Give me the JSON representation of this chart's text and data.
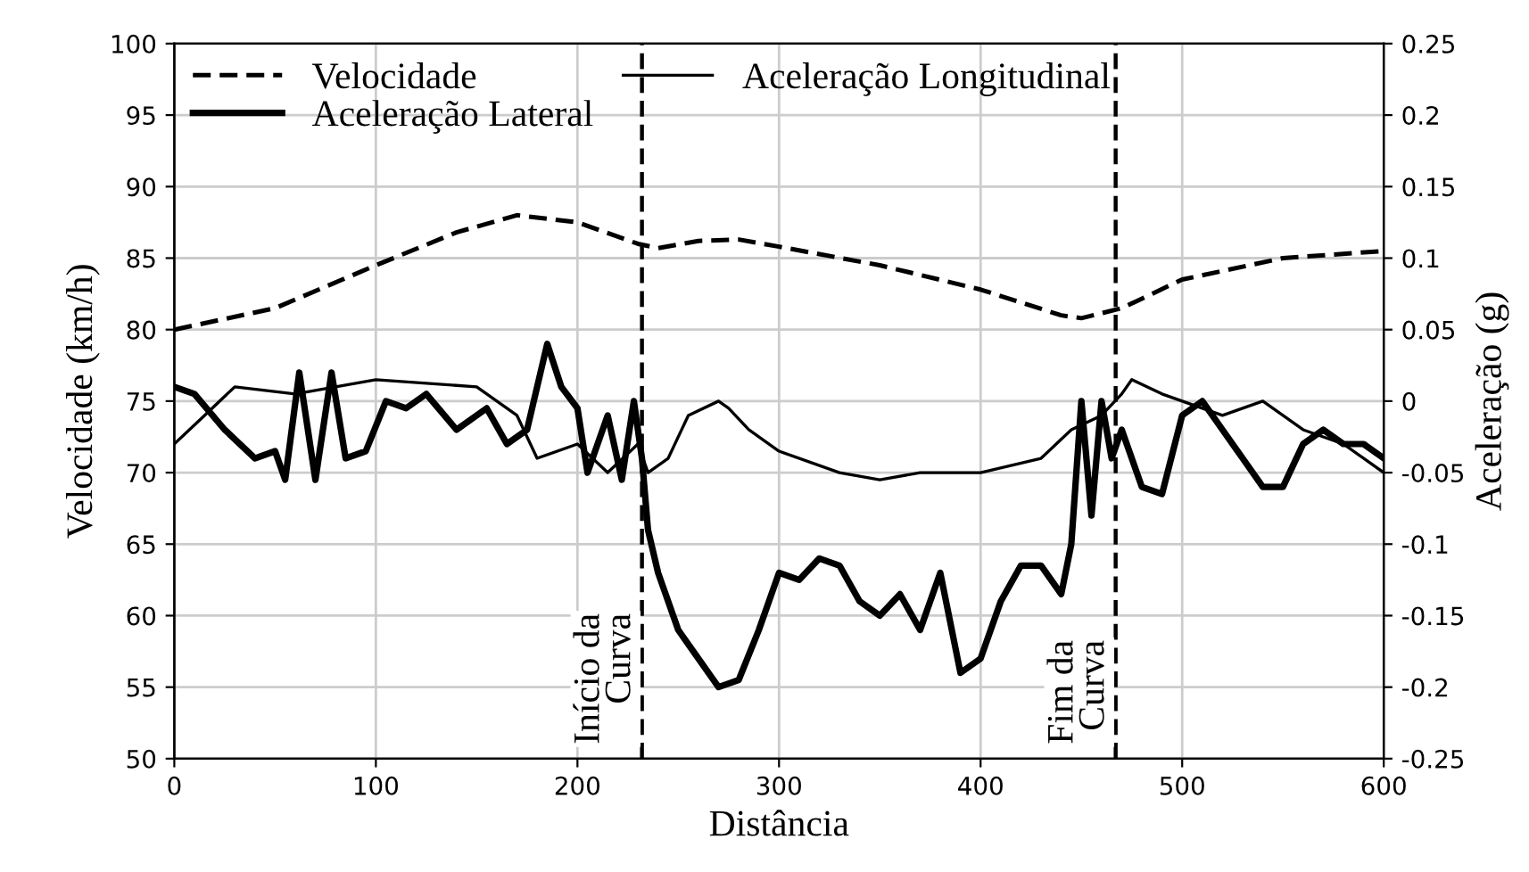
{
  "chart_data": {
    "type": "line",
    "xlabel": "Distância",
    "ylabel": "Velocidade (km/h)",
    "y2label": "Aceleração (g)",
    "xlim": [
      0,
      600
    ],
    "xticks": [
      0,
      100,
      200,
      300,
      400,
      500,
      600
    ],
    "ylim": [
      50,
      100
    ],
    "yticks": [
      50,
      55,
      60,
      65,
      70,
      75,
      80,
      85,
      90,
      95,
      100
    ],
    "y2lim": [
      -0.25,
      0.25
    ],
    "y2ticks": [
      -0.25,
      -0.2,
      -0.15,
      -0.1,
      -0.05,
      0,
      0.05,
      0.1,
      0.15,
      0.2,
      0.25
    ],
    "grid": true,
    "legend": "top left",
    "series": [
      {
        "name": "Velocidade",
        "color": "#000000",
        "line_style": "dashed",
        "x": [
          0,
          50,
          100,
          140,
          170,
          200,
          230,
          240,
          260,
          280,
          300,
          350,
          400,
          440,
          450,
          470,
          500,
          550,
          600
        ],
        "values": [
          80,
          81.5,
          84.5,
          86.8,
          88,
          87.5,
          86,
          85.7,
          86.2,
          86.3,
          85.8,
          84.5,
          82.8,
          81,
          80.8,
          81.5,
          83.5,
          85,
          85.5
        ]
      },
      {
        "name": "Aceleração Lateral",
        "color": "#000000",
        "axis": "y2",
        "x": [
          0,
          10,
          25,
          40,
          50,
          55,
          62,
          70,
          78,
          85,
          95,
          105,
          115,
          125,
          140,
          155,
          165,
          175,
          185,
          192,
          200,
          205,
          215,
          222,
          228,
          232,
          235,
          240,
          250,
          260,
          270,
          280,
          290,
          300,
          310,
          320,
          330,
          340,
          350,
          360,
          370,
          380,
          390,
          400,
          410,
          420,
          430,
          440,
          445,
          450,
          455,
          460,
          465,
          470,
          480,
          490,
          500,
          510,
          520,
          530,
          540,
          550,
          560,
          570,
          580,
          590,
          600
        ],
        "values": [
          0.01,
          0.005,
          -0.02,
          -0.04,
          -0.035,
          -0.055,
          0.02,
          -0.055,
          0.02,
          -0.04,
          -0.035,
          0.0,
          -0.005,
          0.005,
          -0.02,
          -0.005,
          -0.03,
          -0.02,
          0.04,
          0.01,
          -0.005,
          -0.05,
          -0.01,
          -0.055,
          0.0,
          -0.04,
          -0.09,
          -0.12,
          -0.16,
          -0.18,
          -0.2,
          -0.195,
          -0.16,
          -0.12,
          -0.125,
          -0.11,
          -0.115,
          -0.14,
          -0.15,
          -0.135,
          -0.16,
          -0.12,
          -0.19,
          -0.18,
          -0.14,
          -0.115,
          -0.115,
          -0.135,
          -0.1,
          0.0,
          -0.08,
          0.0,
          -0.04,
          -0.02,
          -0.06,
          -0.065,
          -0.01,
          0.0,
          -0.02,
          -0.04,
          -0.06,
          -0.06,
          -0.03,
          -0.02,
          -0.03,
          -0.03,
          -0.04
        ]
      },
      {
        "name": "Aceleração Longitudinal",
        "color": "#000000",
        "axis": "y2",
        "x": [
          0,
          15,
          30,
          60,
          100,
          150,
          170,
          180,
          200,
          215,
          230,
          235,
          245,
          255,
          270,
          275,
          285,
          300,
          330,
          350,
          370,
          400,
          430,
          445,
          460,
          470,
          475,
          490,
          500,
          520,
          540,
          560,
          580,
          600
        ],
        "values": [
          -0.03,
          -0.01,
          0.01,
          0.005,
          0.015,
          0.01,
          -0.01,
          -0.04,
          -0.03,
          -0.05,
          -0.03,
          -0.05,
          -0.04,
          -0.01,
          0.0,
          -0.005,
          -0.02,
          -0.035,
          -0.05,
          -0.055,
          -0.05,
          -0.05,
          -0.04,
          -0.02,
          -0.01,
          0.005,
          0.015,
          0.005,
          0.0,
          -0.01,
          0.0,
          -0.02,
          -0.03,
          -0.05
        ]
      }
    ],
    "ref_lines": [
      {
        "axis": "x",
        "value": 232,
        "label": "Início da\nCurva",
        "color": "#000000",
        "line_style": "dashed"
      },
      {
        "axis": "x",
        "value": 467,
        "label": "Fim da\nCurva",
        "color": "#000000",
        "line_style": "dashed"
      }
    ]
  }
}
